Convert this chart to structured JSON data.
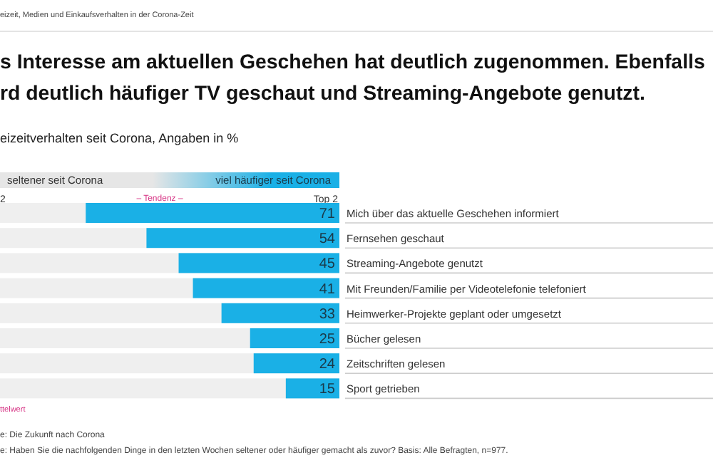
{
  "chart_data": {
    "type": "bar",
    "orientation": "horizontal",
    "title": "s Interesse am aktuellen Geschehen hat deutlich zugenommen. Ebenfalls\nrd deutlich häufiger TV geschaut und Streaming-Angebote genutzt.",
    "subtitle": "eizeitverhalten seit Corona, Angaben in %",
    "categories": [
      "Mich über das aktuelle Geschehen informiert",
      "Fernsehen geschaut",
      "Streaming-Angebote genutzt",
      "Mit Freunden/Familie per Videotelefonie telefoniert",
      "Heimwerker-Projekte geplant oder umgesetzt",
      "Bücher gelesen",
      "Zeitschriften gelesen",
      "Sport getrieben"
    ],
    "values": [
      71,
      54,
      45,
      41,
      33,
      25,
      24,
      15
    ],
    "color": "#1ab0e6",
    "data_labels": true,
    "xlim": [
      95,
      0
    ],
    "annotations": [
      "eizeit, Medien und Einkaufsverhalten in der Corona-Zeit",
      "seltener seit Corona",
      "viel häufiger seit Corona",
      "2",
      "– Tendenz –",
      "Top 2",
      "ttelwert",
      "e: Die Zukunft nach Corona",
      "e: Haben Sie die nachfolgenden Dinge in den letzten Wochen seltener oder häufiger gemacht als zuvor? Basis: Alle Befragten, n=977."
    ]
  }
}
